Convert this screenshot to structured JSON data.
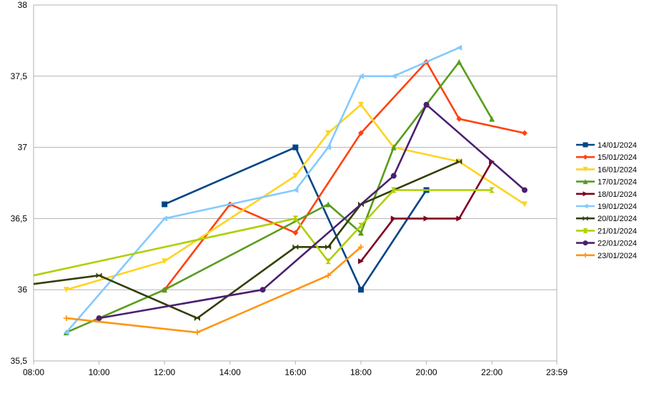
{
  "chart_data": {
    "type": "line",
    "title": "",
    "xlabel": "",
    "ylabel": "",
    "x_ticks": [
      "08:00",
      "10:00",
      "12:00",
      "14:00",
      "16:00",
      "18:00",
      "20:00",
      "22:00",
      "23:59"
    ],
    "y_ticks": [
      "35,5",
      "36",
      "36,5",
      "37",
      "37,5",
      "38"
    ],
    "xlim": [
      "08:00",
      "23:59"
    ],
    "ylim": [
      35.5,
      38
    ],
    "grid": "horizontal",
    "legend_position": "right",
    "series": [
      {
        "name": "14/01/2024",
        "color": "#004586",
        "marker": "square",
        "points": [
          [
            "12:00",
            36.6
          ],
          [
            "16:00",
            37.0
          ],
          [
            "18:00",
            36.0
          ],
          [
            "20:00",
            36.7
          ]
        ]
      },
      {
        "name": "15/01/2024",
        "color": "#ff420e",
        "marker": "diamond",
        "points": [
          [
            "12:00",
            36.0
          ],
          [
            "14:00",
            36.6
          ],
          [
            "16:00",
            36.4
          ],
          [
            "18:00",
            37.1
          ],
          [
            "20:00",
            37.6
          ],
          [
            "21:00",
            37.2
          ],
          [
            "23:00",
            37.1
          ]
        ]
      },
      {
        "name": "16/01/2024",
        "color": "#ffd320",
        "marker": "triangle-down",
        "points": [
          [
            "09:00",
            36.0
          ],
          [
            "12:00",
            36.2
          ],
          [
            "16:00",
            36.8
          ],
          [
            "17:00",
            37.1
          ],
          [
            "18:00",
            37.3
          ],
          [
            "19:00",
            37.0
          ],
          [
            "21:00",
            36.9
          ],
          [
            "23:00",
            36.6
          ]
        ]
      },
      {
        "name": "17/01/2024",
        "color": "#579d1c",
        "marker": "triangle-up",
        "points": [
          [
            "09:00",
            35.7
          ],
          [
            "12:00",
            36.0
          ],
          [
            "17:00",
            36.6
          ],
          [
            "18:00",
            36.4
          ],
          [
            "19:00",
            37.0
          ],
          [
            "20:00",
            37.3
          ],
          [
            "21:00",
            37.6
          ],
          [
            "22:00",
            37.2
          ]
        ]
      },
      {
        "name": "18/01/2024",
        "color": "#7e0021",
        "marker": "triangle-right",
        "points": [
          [
            "18:00",
            36.2
          ],
          [
            "19:00",
            36.5
          ],
          [
            "20:00",
            36.5
          ],
          [
            "21:00",
            36.5
          ],
          [
            "22:00",
            36.9
          ]
        ]
      },
      {
        "name": "19/01/2024",
        "color": "#83caff",
        "marker": "triangle-left",
        "points": [
          [
            "09:00",
            35.7
          ],
          [
            "12:00",
            36.5
          ],
          [
            "16:00",
            36.7
          ],
          [
            "17:00",
            37.0
          ],
          [
            "18:00",
            37.5
          ],
          [
            "19:00",
            37.5
          ],
          [
            "21:00",
            37.7
          ]
        ]
      },
      {
        "name": "20/01/2024",
        "color": "#314004",
        "marker": "bowtie",
        "points": [
          [
            "08:00",
            36.04
          ],
          [
            "10:00",
            36.1
          ],
          [
            "13:00",
            35.8
          ],
          [
            "16:00",
            36.3
          ],
          [
            "17:00",
            36.3
          ],
          [
            "18:00",
            36.6
          ],
          [
            "21:00",
            36.9
          ]
        ]
      },
      {
        "name": "21/01/2024",
        "color": "#aecf00",
        "marker": "hourglass",
        "points": [
          [
            "08:00",
            36.1
          ],
          [
            "16:00",
            36.5
          ],
          [
            "17:00",
            36.2
          ],
          [
            "18:00",
            36.45
          ],
          [
            "19:00",
            36.7
          ],
          [
            "22:00",
            36.7
          ]
        ]
      },
      {
        "name": "22/01/2024",
        "color": "#4b1f6f",
        "marker": "circle",
        "points": [
          [
            "10:00",
            35.8
          ],
          [
            "15:00",
            36.0
          ],
          [
            "19:00",
            36.8
          ],
          [
            "20:00",
            37.3
          ],
          [
            "23:00",
            36.7
          ]
        ]
      },
      {
        "name": "23/01/2024",
        "color": "#ff950e",
        "marker": "plus",
        "points": [
          [
            "09:00",
            35.8
          ],
          [
            "13:00",
            35.7
          ],
          [
            "17:00",
            36.1
          ],
          [
            "18:00",
            36.3
          ]
        ]
      }
    ]
  }
}
